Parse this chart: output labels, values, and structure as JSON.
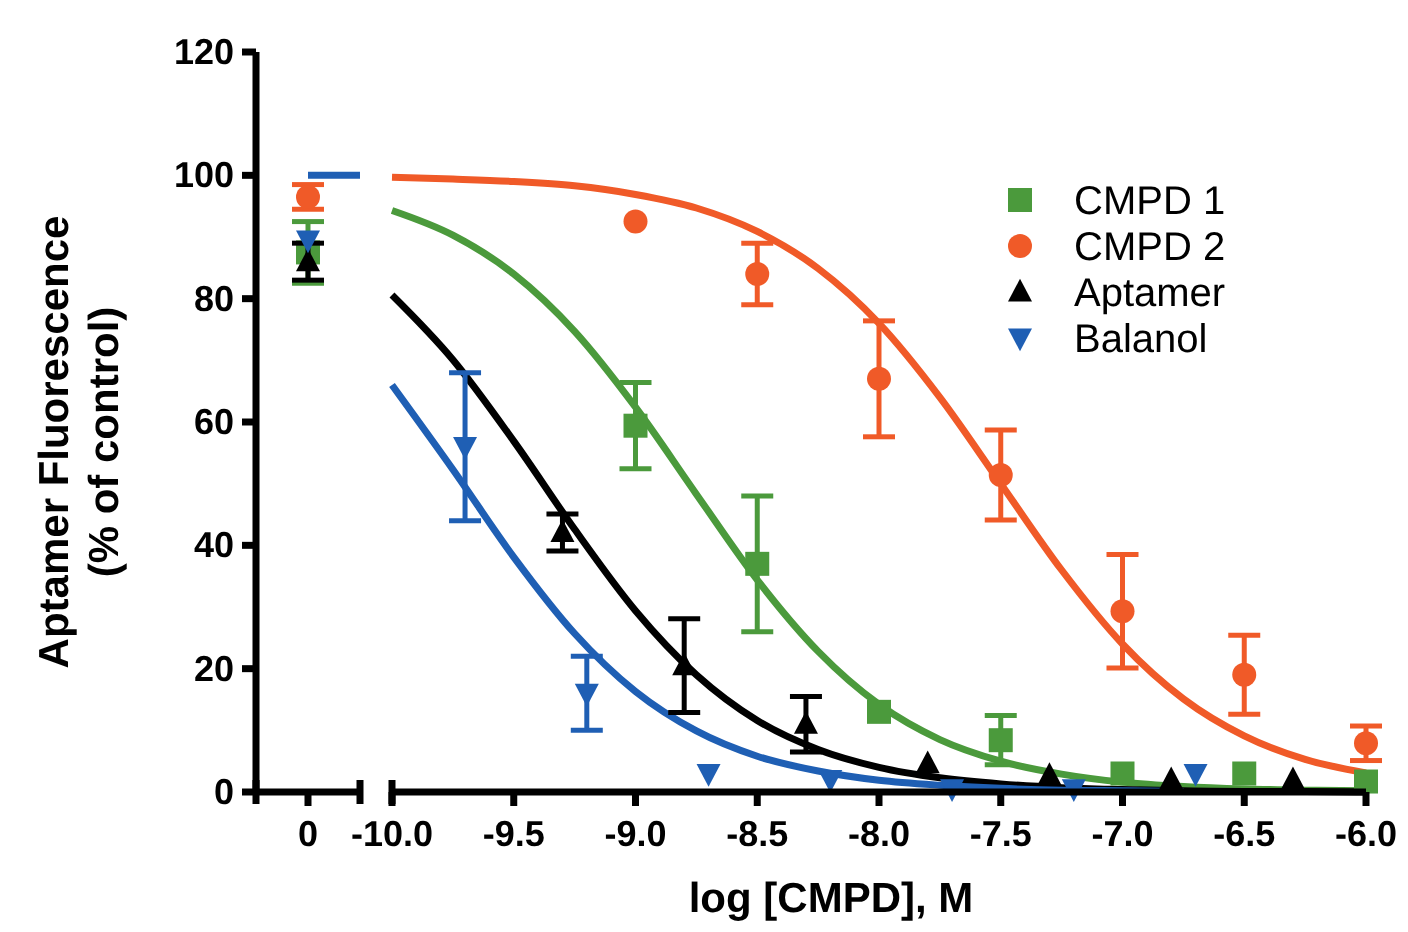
{
  "chart_data": [
    {
      "type": "scatter",
      "categories": [
        "0"
      ],
      "ylim": [
        0,
        120
      ],
      "yticks": [
        0,
        20,
        40,
        60,
        80,
        100,
        120
      ],
      "ylabel": "Aptamer Fluorescence\n(% of control)",
      "tick_labels": "xy",
      "grid": false,
      "legend": false,
      "ref_lines": [
        {
          "axis": "y",
          "value": 100,
          "color": "#1f5fb4"
        }
      ],
      "series": [
        {
          "color": "#4b9a3c",
          "marker": "square",
          "values": [
            87.5
          ],
          "errors": [
            5
          ]
        },
        {
          "color": "#f05a28",
          "marker": "circle",
          "values": [
            96.5
          ],
          "errors": [
            2
          ]
        },
        {
          "color": "#000000",
          "marker": "triangle",
          "values": [
            86
          ],
          "errors": [
            3
          ]
        },
        {
          "color": "#1f5fb4",
          "marker": "triangle-down",
          "values": [
            89.5
          ],
          "errors": [
            null
          ]
        }
      ]
    },
    {
      "type": "scatter",
      "xlim": [
        -10,
        -6
      ],
      "xticks": [
        {
          "value": -10,
          "label": "-10.0"
        },
        {
          "value": -9.5,
          "label": "-9.5"
        },
        {
          "value": -9,
          "label": "-9.0"
        },
        {
          "value": -8.5,
          "label": "-8.5"
        },
        {
          "value": -8,
          "label": "-8.0"
        },
        {
          "value": -7.5,
          "label": "-7.5"
        },
        {
          "value": -7,
          "label": "-7.0"
        },
        {
          "value": -6.5,
          "label": "-6.5"
        },
        {
          "value": -6,
          "label": "-6.0"
        }
      ],
      "ylim": [
        0,
        120
      ],
      "xlabel": "log [CMPD], M",
      "tick_labels": "x",
      "grid": false,
      "legend": "top right",
      "series": [
        {
          "type": "line",
          "color": "#4b9a3c",
          "x": [
            -10,
            -9.75,
            -9.5,
            -9.25,
            -9,
            -8.75,
            -8.5,
            -8.25,
            -8,
            -7.75,
            -7.5,
            -7.25,
            -7,
            -6.75,
            -6.5,
            -6.25,
            -6
          ],
          "values": [
            94.3,
            90.3,
            84,
            74.7,
            62.4,
            48.3,
            34.4,
            22.8,
            14.2,
            8.5,
            5,
            2.9,
            1.6,
            0.9,
            0.5,
            0.3,
            0.2
          ]
        },
        {
          "type": "line",
          "color": "#f05a28",
          "x": [
            -10,
            -9.75,
            -9.5,
            -9.25,
            -9,
            -8.75,
            -8.5,
            -8.25,
            -8,
            -7.75,
            -7.5,
            -7.25,
            -7,
            -6.75,
            -6.5,
            -6.25,
            -6
          ],
          "values": [
            99.7,
            99.4,
            99,
            98.3,
            96.9,
            94.7,
            90.9,
            84.9,
            76,
            64,
            50,
            36,
            24,
            15.1,
            9.1,
            5.3,
            3.1
          ]
        },
        {
          "type": "line",
          "color": "#000000",
          "x": [
            -10,
            -9.75,
            -9.5,
            -9.25,
            -9,
            -8.75,
            -8.5,
            -8.25,
            -8,
            -7.75,
            -7.5,
            -7.25,
            -7,
            -6.75,
            -6.5,
            -6.25,
            -6
          ],
          "values": [
            80.6,
            70.1,
            56.9,
            42.6,
            29.4,
            19,
            11.6,
            6.9,
            4,
            2.3,
            1.3,
            0.7,
            0.4,
            0.2,
            0.1,
            0.1,
            0
          ]
        },
        {
          "type": "line",
          "color": "#1f5fb4",
          "x": [
            -10,
            -9.75,
            -9.5,
            -9.25,
            -9,
            -8.75,
            -8.5,
            -8.25,
            -8,
            -7.75,
            -7.5,
            -7.25,
            -7,
            -6.75
          ],
          "values": [
            66,
            52.3,
            38.1,
            25.7,
            16.3,
            9.9,
            5.8,
            3.4,
            1.9,
            1.1,
            0.6,
            0.3,
            0.2,
            0.1
          ]
        },
        {
          "name": "CMPD 1",
          "color": "#4b9a3c",
          "marker": "square",
          "x": [
            -9,
            -8.5,
            -8,
            -7.5,
            -7,
            -6.5,
            -6
          ],
          "values": [
            59.4,
            37,
            13,
            8.4,
            3,
            3,
            1.7
          ],
          "errors": [
            7,
            11,
            null,
            4,
            null,
            null,
            null
          ]
        },
        {
          "name": "CMPD 2",
          "color": "#f05a28",
          "marker": "circle",
          "x": [
            -9,
            -8.5,
            -8,
            -7.5,
            -7,
            -6.5,
            -6
          ],
          "values": [
            92.5,
            84,
            67,
            51.4,
            29.3,
            19,
            7.9
          ],
          "errors": [
            null,
            5,
            9.4,
            7.3,
            9.2,
            6.4,
            2.8
          ]
        },
        {
          "name": "Aptamer",
          "color": "#000000",
          "marker": "triangle",
          "x": [
            -9.3,
            -8.8,
            -8.3,
            -7.8,
            -7.3,
            -6.8,
            -6.3
          ],
          "values": [
            42.1,
            20.5,
            11,
            4.6,
            2.7,
            2,
            2
          ],
          "errors": [
            3,
            7.6,
            4.5,
            null,
            null,
            null,
            null
          ]
        },
        {
          "name": "Balanol",
          "color": "#1f5fb4",
          "marker": "triangle-down",
          "x": [
            -9.7,
            -9.2,
            -8.7,
            -8.2,
            -7.7,
            -7.2,
            -6.7
          ],
          "values": [
            56,
            16,
            3,
            2,
            0.5,
            0.5,
            3
          ],
          "errors": [
            12,
            6,
            null,
            null,
            null,
            null,
            null
          ]
        }
      ]
    }
  ]
}
